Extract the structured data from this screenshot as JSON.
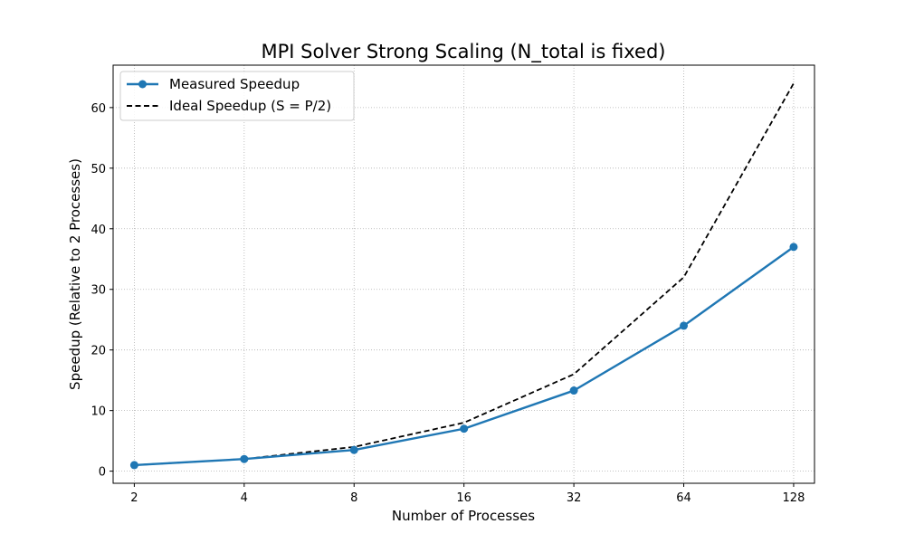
{
  "chart_data": {
    "type": "line",
    "title": "MPI Solver Strong Scaling (N_total is fixed)",
    "xlabel": "Number of Processes",
    "ylabel": "Speedup (Relative to 2 Processes)",
    "x": [
      2,
      4,
      8,
      16,
      32,
      64,
      128
    ],
    "x_scale": "log2",
    "xlim": [
      1.75,
      146
    ],
    "ylim": [
      -2,
      67
    ],
    "yticks": [
      0,
      10,
      20,
      30,
      40,
      50,
      60
    ],
    "grid": true,
    "legend_position": "top-left",
    "series": [
      {
        "name": "Measured Speedup",
        "values": [
          1.0,
          2.0,
          3.5,
          7.0,
          13.3,
          24.0,
          37.0
        ],
        "color": "#1f77b4",
        "style": "solid",
        "marker": "circle"
      },
      {
        "name": "Ideal Speedup (S = P/2)",
        "values": [
          1,
          2,
          4,
          8,
          16,
          32,
          64
        ],
        "color": "#000000",
        "style": "dashed",
        "marker": "none"
      }
    ]
  }
}
